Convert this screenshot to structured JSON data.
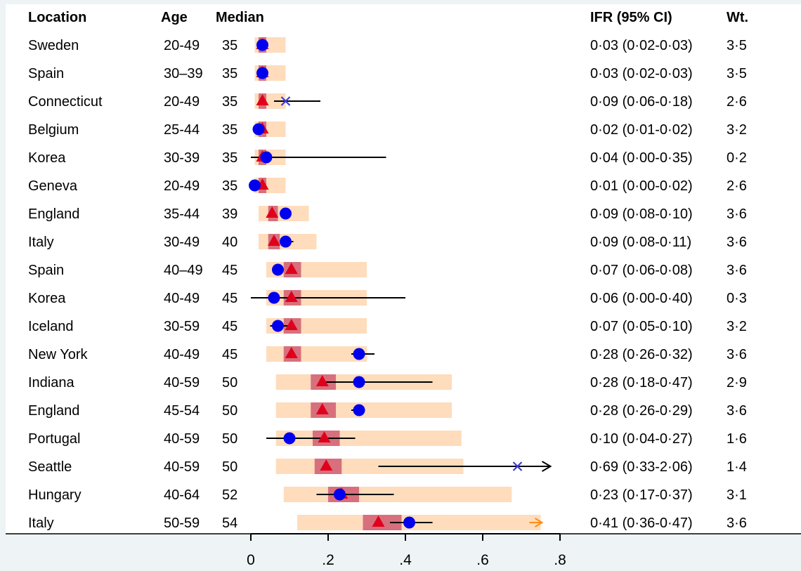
{
  "headers": {
    "location": "Location",
    "age": "Age",
    "median": "Median",
    "ifr": "IFR (95% CI)",
    "weight": "Wt."
  },
  "colors": {
    "band_light": "#fedcbc",
    "band_dark": "#d7707c",
    "triangle": "#e0001b",
    "circle": "#0000ee",
    "cross": "#3b3bd6",
    "ci_line": "#000000",
    "overflow_arrow": "#ff8c1a"
  },
  "chart_data": {
    "type": "forest",
    "x_ticks": [
      "0",
      ".2",
      ".4",
      ".6",
      ".8"
    ],
    "x_tick_values": [
      0,
      0.2,
      0.4,
      0.6,
      0.8
    ],
    "xlim": [
      0,
      0.8
    ],
    "rows": [
      {
        "location": "Sweden",
        "age": "20-49",
        "median": "35",
        "ifr_text": "0·03 (0·02-0·03)",
        "weight": "3·5",
        "estimate": 0.03,
        "ci": [
          0.02,
          0.03
        ],
        "marker": "circle",
        "model": 0.03,
        "band_light": [
          0.01,
          0.09
        ],
        "band_dark": [
          0.02,
          0.04
        ]
      },
      {
        "location": "Spain",
        "age": "30–39",
        "median": "35",
        "ifr_text": "0·03 (0·02-0·03)",
        "weight": "3·5",
        "estimate": 0.03,
        "ci": [
          0.02,
          0.03
        ],
        "marker": "circle",
        "model": 0.03,
        "band_light": [
          0.01,
          0.09
        ],
        "band_dark": [
          0.02,
          0.04
        ]
      },
      {
        "location": "Connecticut",
        "age": "20-49",
        "median": "35",
        "ifr_text": "0·09 (0·06-0·18)",
        "weight": "2·6",
        "estimate": 0.09,
        "ci": [
          0.06,
          0.18
        ],
        "marker": "cross",
        "model": 0.03,
        "band_light": [
          0.01,
          0.09
        ],
        "band_dark": [
          0.02,
          0.04
        ]
      },
      {
        "location": "Belgium",
        "age": "25-44",
        "median": "35",
        "ifr_text": "0·02 (0·01-0·02)",
        "weight": "3·2",
        "estimate": 0.02,
        "ci": [
          0.01,
          0.02
        ],
        "marker": "circle",
        "model": 0.03,
        "band_light": [
          0.01,
          0.09
        ],
        "band_dark": [
          0.02,
          0.04
        ]
      },
      {
        "location": "Korea",
        "age": "30-39",
        "median": "35",
        "ifr_text": "0·04 (0·00-0·35)",
        "weight": "0·2",
        "estimate": 0.04,
        "ci": [
          0.0,
          0.35
        ],
        "marker": "circle",
        "model": 0.03,
        "band_light": [
          0.01,
          0.09
        ],
        "band_dark": [
          0.02,
          0.04
        ]
      },
      {
        "location": "Geneva",
        "age": "20-49",
        "median": "35",
        "ifr_text": "0·01 (0·00-0·02)",
        "weight": "2·6",
        "estimate": 0.01,
        "ci": [
          0.0,
          0.02
        ],
        "marker": "circle",
        "model": 0.03,
        "band_light": [
          0.01,
          0.09
        ],
        "band_dark": [
          0.02,
          0.04
        ]
      },
      {
        "location": "England",
        "age": "35-44",
        "median": "39",
        "ifr_text": "0·09 (0·08-0·10)",
        "weight": "3·6",
        "estimate": 0.09,
        "ci": [
          0.08,
          0.1
        ],
        "marker": "circle",
        "model": 0.055,
        "band_light": [
          0.02,
          0.15
        ],
        "band_dark": [
          0.045,
          0.07
        ]
      },
      {
        "location": "Italy",
        "age": "30-49",
        "median": "40",
        "ifr_text": "0·09 (0·08-0·11)",
        "weight": "3·6",
        "estimate": 0.09,
        "ci": [
          0.08,
          0.11
        ],
        "marker": "circle",
        "model": 0.06,
        "band_light": [
          0.02,
          0.17
        ],
        "band_dark": [
          0.045,
          0.075
        ]
      },
      {
        "location": "Spain",
        "age": "40–49",
        "median": "45",
        "ifr_text": "0·07 (0·06-0·08)",
        "weight": "3·6",
        "estimate": 0.07,
        "ci": [
          0.06,
          0.08
        ],
        "marker": "circle",
        "model": 0.105,
        "band_light": [
          0.04,
          0.3
        ],
        "band_dark": [
          0.085,
          0.13
        ]
      },
      {
        "location": "Korea",
        "age": "40-49",
        "median": "45",
        "ifr_text": "0·06 (0·00-0·40)",
        "weight": "0·3",
        "estimate": 0.06,
        "ci": [
          0.0,
          0.4
        ],
        "marker": "circle",
        "model": 0.105,
        "band_light": [
          0.04,
          0.3
        ],
        "band_dark": [
          0.085,
          0.13
        ]
      },
      {
        "location": "Iceland",
        "age": "30-59",
        "median": "45",
        "ifr_text": "0·07 (0·05-0·10)",
        "weight": "3·2",
        "estimate": 0.07,
        "ci": [
          0.05,
          0.1
        ],
        "marker": "circle",
        "model": 0.105,
        "band_light": [
          0.04,
          0.3
        ],
        "band_dark": [
          0.085,
          0.13
        ]
      },
      {
        "location": "New York",
        "age": "40-49",
        "median": "45",
        "ifr_text": "0·28 (0·26-0·32)",
        "weight": "3·6",
        "estimate": 0.28,
        "ci": [
          0.26,
          0.32
        ],
        "marker": "circle",
        "model": 0.105,
        "band_light": [
          0.04,
          0.3
        ],
        "band_dark": [
          0.085,
          0.13
        ]
      },
      {
        "location": "Indiana",
        "age": "40-59",
        "median": "50",
        "ifr_text": "0·28 (0·18-0·47)",
        "weight": "2·9",
        "estimate": 0.28,
        "ci": [
          0.18,
          0.47
        ],
        "marker": "circle",
        "model": 0.185,
        "band_light": [
          0.065,
          0.52
        ],
        "band_dark": [
          0.155,
          0.22
        ]
      },
      {
        "location": "England",
        "age": "45-54",
        "median": "50",
        "ifr_text": "0·28 (0·26-0·29)",
        "weight": "3·6",
        "estimate": 0.28,
        "ci": [
          0.26,
          0.29
        ],
        "marker": "circle",
        "model": 0.185,
        "band_light": [
          0.065,
          0.52
        ],
        "band_dark": [
          0.155,
          0.22
        ]
      },
      {
        "location": "Portugal",
        "age": "40-59",
        "median": "50",
        "ifr_text": "0·10 (0·04-0·27)",
        "weight": "1·6",
        "estimate": 0.1,
        "ci": [
          0.04,
          0.27
        ],
        "marker": "circle",
        "model": 0.19,
        "band_light": [
          0.065,
          0.545
        ],
        "band_dark": [
          0.16,
          0.23
        ]
      },
      {
        "location": "Seattle",
        "age": "40-59",
        "median": "50",
        "ifr_text": "0·69 (0·33-2·06)",
        "weight": "1·4",
        "estimate": 0.69,
        "ci": [
          0.33,
          2.06
        ],
        "marker": "cross",
        "model": 0.195,
        "band_light": [
          0.065,
          0.55
        ],
        "band_dark": [
          0.165,
          0.235
        ]
      },
      {
        "location": "Hungary",
        "age": "40-64",
        "median": "52",
        "ifr_text": "0·23 (0·17-0·37)",
        "weight": "3·1",
        "estimate": 0.23,
        "ci": [
          0.17,
          0.37
        ],
        "marker": "circle",
        "model": 0.235,
        "band_light": [
          0.085,
          0.675
        ],
        "band_dark": [
          0.2,
          0.28
        ]
      },
      {
        "location": "Italy",
        "age": "50-59",
        "median": "54",
        "ifr_text": "0·41 (0·36-0·47)",
        "weight": "3·6",
        "estimate": 0.41,
        "ci": [
          0.36,
          0.47
        ],
        "marker": "circle",
        "model": 0.33,
        "band_light": [
          0.12,
          0.75
        ],
        "band_dark": [
          0.29,
          0.39
        ],
        "band_overflow": true
      }
    ]
  }
}
